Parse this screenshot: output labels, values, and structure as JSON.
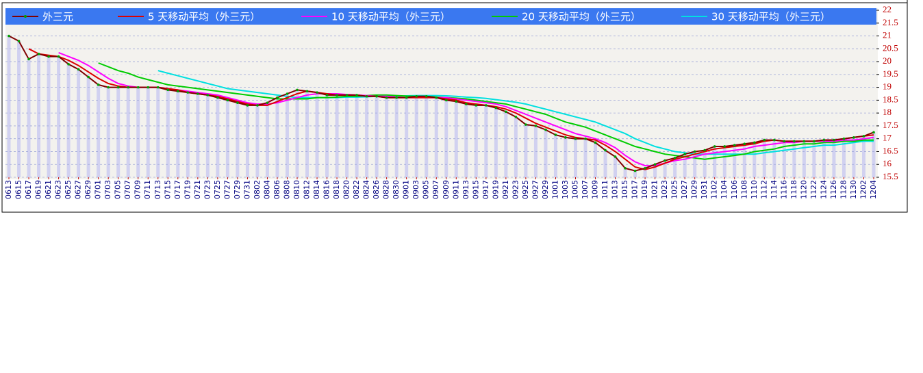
{
  "chart_data": {
    "type": "line",
    "categories": [
      "0613",
      "0615",
      "0617",
      "0619",
      "0621",
      "0623",
      "0625",
      "0627",
      "0629",
      "0701",
      "0703",
      "0705",
      "0707",
      "0709",
      "0711",
      "0713",
      "0715",
      "0717",
      "0719",
      "0721",
      "0723",
      "0725",
      "0727",
      "0729",
      "0731",
      "0802",
      "0804",
      "0806",
      "0808",
      "0810",
      "0812",
      "0814",
      "0816",
      "0818",
      "0820",
      "0822",
      "0824",
      "0826",
      "0828",
      "0830",
      "0901",
      "0903",
      "0905",
      "0907",
      "0909",
      "0911",
      "0913",
      "0915",
      "0917",
      "0919",
      "0921",
      "0923",
      "0925",
      "0927",
      "0929",
      "1001",
      "1003",
      "1005",
      "1007",
      "1009",
      "1011",
      "1013",
      "1015",
      "1017",
      "1019",
      "1021",
      "1023",
      "1025",
      "1027",
      "1029",
      "1031",
      "1102",
      "1104",
      "1106",
      "1108",
      "1110",
      "1112",
      "1114",
      "1116",
      "1118",
      "1120",
      "1122",
      "1124",
      "1126",
      "1128",
      "1130",
      "1202",
      "1204"
    ],
    "series": [
      {
        "name": "外三元",
        "color": "#800000",
        "marker_color": "#00a000",
        "values": [
          21.0,
          20.8,
          20.1,
          20.3,
          20.2,
          20.2,
          19.9,
          19.7,
          19.4,
          19.1,
          19.0,
          19.0,
          19.0,
          19.0,
          19.0,
          19.0,
          18.9,
          18.85,
          18.8,
          18.75,
          18.7,
          18.6,
          18.5,
          18.4,
          18.3,
          18.3,
          18.4,
          18.6,
          18.75,
          18.9,
          18.85,
          18.8,
          18.7,
          18.7,
          18.7,
          18.7,
          18.65,
          18.65,
          18.6,
          18.6,
          18.6,
          18.65,
          18.65,
          18.6,
          18.5,
          18.45,
          18.35,
          18.3,
          18.3,
          18.2,
          18.05,
          17.85,
          17.55,
          17.5,
          17.35,
          17.15,
          17.05,
          17.0,
          17.0,
          16.85,
          16.55,
          16.3,
          15.85,
          15.75,
          15.85,
          16.0,
          16.15,
          16.25,
          16.4,
          16.5,
          16.55,
          16.7,
          16.7,
          16.75,
          16.8,
          16.85,
          16.95,
          16.95,
          16.9,
          16.9,
          16.9,
          16.9,
          16.95,
          16.95,
          17.0,
          17.05,
          17.1,
          17.25
        ]
      },
      {
        "name": "5 天移动平均（外三元）",
        "color": "#dd0000",
        "values": [
          null,
          null,
          20.5,
          20.3,
          20.25,
          20.2,
          20.05,
          19.85,
          19.6,
          19.35,
          19.15,
          19.05,
          19.0,
          19.0,
          19.0,
          19.0,
          18.95,
          18.9,
          18.8,
          18.75,
          18.7,
          18.65,
          18.55,
          18.45,
          18.35,
          18.3,
          18.3,
          18.45,
          18.6,
          18.75,
          18.85,
          18.8,
          18.75,
          18.7,
          18.7,
          18.7,
          18.65,
          18.65,
          18.6,
          18.6,
          18.6,
          18.6,
          18.6,
          18.6,
          18.55,
          18.5,
          18.4,
          18.35,
          18.3,
          18.25,
          18.15,
          18.0,
          17.8,
          17.6,
          17.45,
          17.3,
          17.15,
          17.05,
          17.0,
          16.95,
          16.75,
          16.5,
          16.2,
          15.9,
          15.8,
          15.9,
          16.05,
          16.2,
          16.3,
          16.4,
          16.5,
          16.6,
          16.65,
          16.7,
          16.75,
          16.8,
          16.9,
          16.95,
          16.9,
          16.9,
          16.9,
          16.9,
          16.95,
          16.95,
          17.0,
          17.05,
          17.1,
          17.15
        ]
      },
      {
        "name": "10 天移动平均（外三元）",
        "color": "#ff00ff",
        "values": [
          null,
          null,
          null,
          null,
          null,
          20.35,
          20.2,
          20.05,
          19.85,
          19.6,
          19.35,
          19.15,
          19.05,
          19.0,
          19.0,
          19.0,
          18.95,
          18.9,
          18.85,
          18.8,
          18.75,
          18.7,
          18.6,
          18.5,
          18.4,
          18.35,
          18.35,
          18.4,
          18.5,
          18.6,
          18.7,
          18.75,
          18.75,
          18.75,
          18.72,
          18.7,
          18.68,
          18.65,
          18.65,
          18.62,
          18.6,
          18.6,
          18.6,
          18.6,
          18.6,
          18.55,
          18.5,
          18.45,
          18.4,
          18.35,
          18.25,
          18.1,
          17.95,
          17.8,
          17.65,
          17.5,
          17.35,
          17.2,
          17.1,
          17.0,
          16.85,
          16.65,
          16.35,
          16.1,
          15.95,
          15.95,
          16.05,
          16.15,
          16.2,
          16.3,
          16.4,
          16.45,
          16.5,
          16.55,
          16.6,
          16.7,
          16.75,
          16.8,
          16.85,
          16.85,
          16.9,
          16.9,
          16.9,
          16.9,
          16.95,
          16.95,
          17.0,
          17.05
        ]
      },
      {
        "name": "20 天移动平均（外三元）",
        "color": "#00cc00",
        "values": [
          null,
          null,
          null,
          null,
          null,
          null,
          null,
          null,
          null,
          19.95,
          19.8,
          19.65,
          19.55,
          19.4,
          19.3,
          19.2,
          19.1,
          19.05,
          19.0,
          18.95,
          18.9,
          18.85,
          18.8,
          18.75,
          18.7,
          18.65,
          18.6,
          18.55,
          18.55,
          18.55,
          18.55,
          18.6,
          18.6,
          18.62,
          18.65,
          18.65,
          18.68,
          18.7,
          18.7,
          18.68,
          18.66,
          18.65,
          18.65,
          18.62,
          18.6,
          18.58,
          18.55,
          18.5,
          18.45,
          18.4,
          18.35,
          18.25,
          18.15,
          18.05,
          17.95,
          17.8,
          17.65,
          17.55,
          17.45,
          17.3,
          17.15,
          17.0,
          16.85,
          16.7,
          16.6,
          16.5,
          16.4,
          16.35,
          16.3,
          16.25,
          16.2,
          16.25,
          16.3,
          16.35,
          16.4,
          16.5,
          16.55,
          16.6,
          16.7,
          16.75,
          16.8,
          16.8,
          16.85,
          16.85,
          16.9,
          16.9,
          16.95,
          16.95
        ]
      },
      {
        "name": "30 天移动平均（外三元）",
        "color": "#00e0e0",
        "values": [
          null,
          null,
          null,
          null,
          null,
          null,
          null,
          null,
          null,
          null,
          null,
          null,
          null,
          null,
          null,
          19.65,
          19.55,
          19.45,
          19.35,
          19.25,
          19.15,
          19.05,
          18.95,
          18.9,
          18.85,
          18.8,
          18.75,
          18.7,
          18.65,
          18.6,
          18.6,
          18.6,
          18.6,
          18.6,
          18.62,
          18.62,
          18.63,
          18.65,
          18.65,
          18.66,
          18.67,
          18.68,
          18.68,
          18.68,
          18.67,
          18.65,
          18.62,
          18.6,
          18.57,
          18.52,
          18.47,
          18.42,
          18.35,
          18.25,
          18.15,
          18.05,
          17.95,
          17.85,
          17.75,
          17.65,
          17.5,
          17.35,
          17.2,
          17.0,
          16.85,
          16.7,
          16.6,
          16.5,
          16.45,
          16.4,
          16.4,
          16.4,
          16.4,
          16.4,
          16.4,
          16.4,
          16.45,
          16.5,
          16.55,
          16.6,
          16.65,
          16.7,
          16.75,
          16.75,
          16.8,
          16.85,
          16.9,
          16.9
        ]
      }
    ],
    "ylim": [
      15.5,
      22
    ],
    "yticks": [
      15.5,
      16,
      16.5,
      17,
      17.5,
      18,
      18.5,
      19,
      19.5,
      20,
      20.5,
      21,
      21.5,
      22
    ],
    "grid": true,
    "legend": "top",
    "bars": true
  }
}
